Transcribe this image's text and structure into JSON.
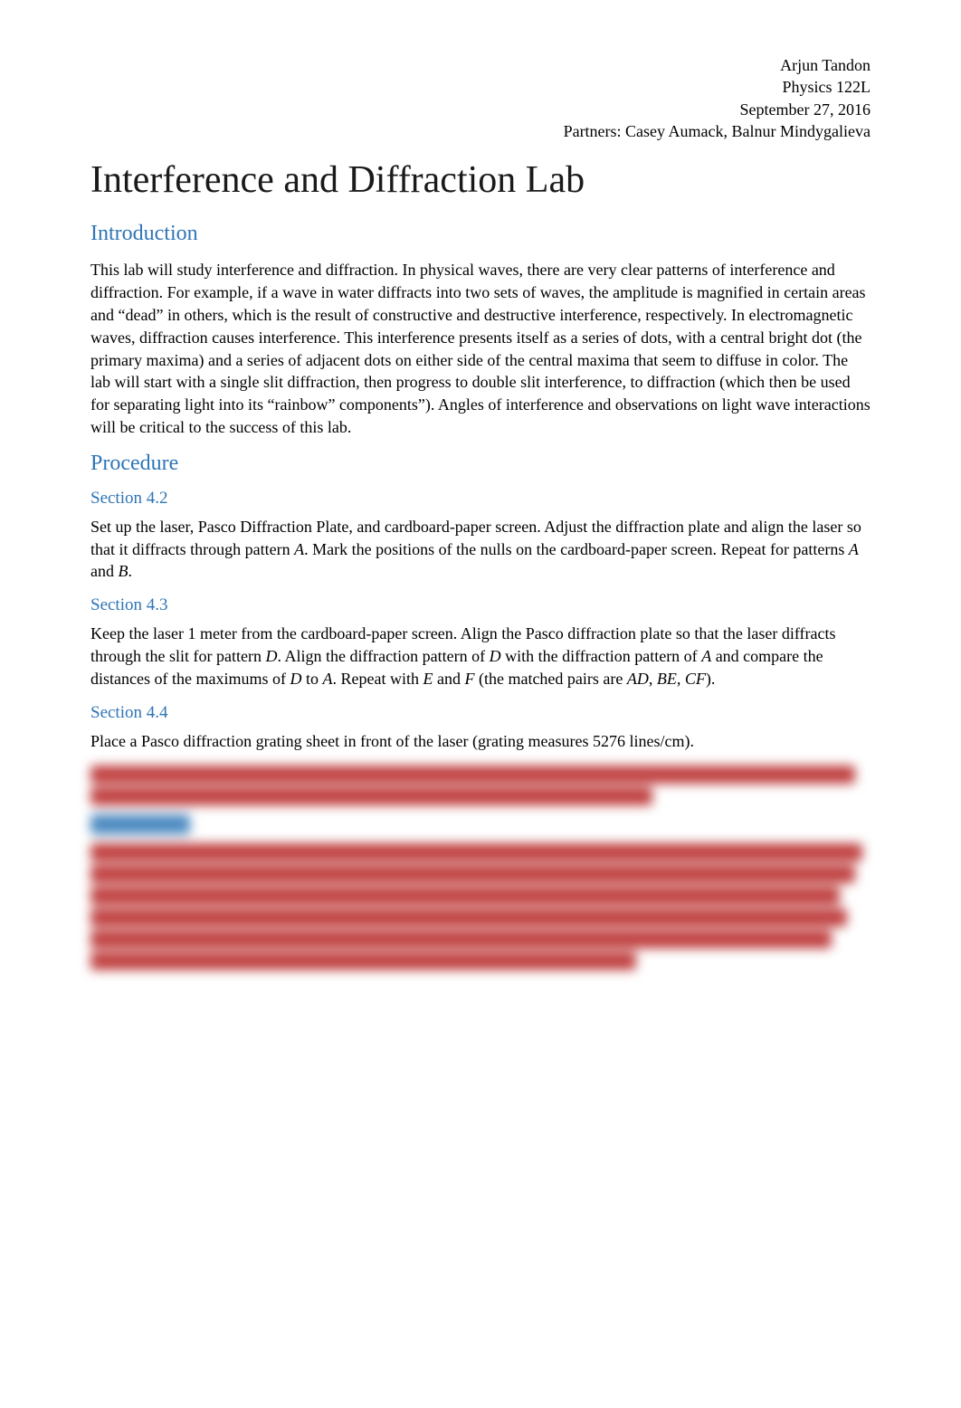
{
  "header": {
    "author": "Arjun Tandon",
    "course": "Physics 122L",
    "date": "September 27, 2016",
    "partners": "Partners: Casey Aumack, Balnur Mindygalieva"
  },
  "title": "Interference and Diffraction Lab",
  "sections": {
    "intro": {
      "heading": "Introduction",
      "body": "This lab will study interference and diffraction. In physical waves, there are very clear patterns of interference and diffraction. For example, if a wave in water diffracts into two sets of waves, the amplitude is magnified in certain areas and “dead” in others, which is the result of constructive and destructive interference, respectively. In electromagnetic waves, diffraction causes interference. This interference presents itself as a series of dots, with a central bright dot (the primary maxima) and a series of adjacent dots on either side of the central maxima that seem to diffuse in color. The lab will start with a single slit diffraction, then progress to double slit interference, to diffraction (which then be used for separating light into its “rainbow” components”). Angles of interference and observations on light wave interactions will be critical to the success of this lab."
    },
    "procedure": {
      "heading": "Procedure",
      "subsections": [
        {
          "heading": "Section 4.2",
          "body_html": "Set up the laser, Pasco Diffraction Plate, and cardboard-paper screen. Adjust the diffraction plate and align the laser so that it diffracts through pattern <span class=\"ital\">A</span>. Mark the positions of the nulls on the cardboard-paper screen. Repeat for patterns <span class=\"ital\">A</span> and <span class=\"ital\">B</span>."
        },
        {
          "heading": "Section 4.3",
          "body_html": "Keep the laser 1 meter from the cardboard-paper screen. Align the Pasco diffraction plate so that the laser diffracts through the slit for pattern <span class=\"ital\">D</span>. Align the diffraction pattern of <span class=\"ital\">D</span> with the diffraction pattern of <span class=\"ital\">A</span> and compare the distances of the maximums of <span class=\"ital\">D</span> to <span class=\"ital\">A</span>. Repeat with <span class=\"ital\">E</span> and <span class=\"ital\">F</span> (the matched pairs are <span class=\"ital\">AD</span>, <span class=\"ital\">BE</span>, <span class=\"ital\">CF</span>)."
        },
        {
          "heading": "Section 4.4",
          "body_html": "Place a Pasco diffraction grating sheet in front of the laser (grating measures 5276 lines/cm)."
        }
      ]
    }
  },
  "blurred": {
    "lines_top": [
      {
        "widthPct": 98,
        "color": "#c04040"
      },
      {
        "widthPct": 72,
        "color": "#c04040"
      }
    ],
    "sub_heading_width": 110,
    "lines_bottom": [
      {
        "widthPct": 99,
        "color": "#c04040"
      },
      {
        "widthPct": 98,
        "color": "#c04040"
      },
      {
        "widthPct": 96,
        "color": "#c04040"
      },
      {
        "widthPct": 97,
        "color": "#c04040"
      },
      {
        "widthPct": 95,
        "color": "#c04040"
      },
      {
        "widthPct": 70,
        "color": "#c04040"
      }
    ]
  },
  "style": {
    "page_bg": "#ffffff",
    "text_color": "#000000",
    "heading_color": "#2e75b6",
    "blur_text_color": "#c04040",
    "title_fontsize": 42,
    "heading_fontsize": 24,
    "subheading_fontsize": 19,
    "body_fontsize": 18,
    "font_family": "Times New Roman"
  }
}
